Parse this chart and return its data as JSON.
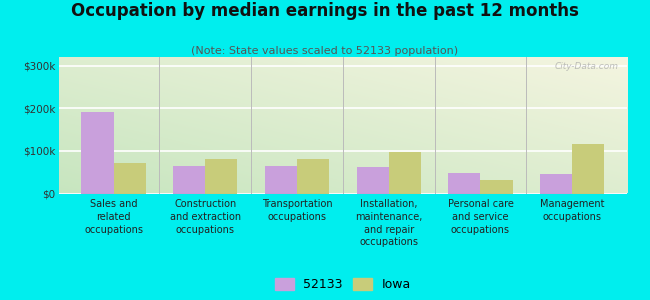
{
  "title": "Occupation by median earnings in the past 12 months",
  "subtitle": "(Note: State values scaled to 52133 population)",
  "categories": [
    "Sales and\nrelated\noccupations",
    "Construction\nand extraction\noccupations",
    "Transportation\noccupations",
    "Installation,\nmaintenance,\nand repair\noccupations",
    "Personal care\nand service\noccupations",
    "Management\noccupations"
  ],
  "values_52133": [
    190000,
    65000,
    65000,
    62000,
    48000,
    45000
  ],
  "values_iowa": [
    72000,
    82000,
    80000,
    98000,
    32000,
    115000
  ],
  "color_52133": "#c9a0dc",
  "color_iowa": "#c8cc7a",
  "ylim": [
    0,
    320000
  ],
  "yticks": [
    0,
    100000,
    200000,
    300000
  ],
  "ytick_labels": [
    "$0",
    "$100k",
    "$200k",
    "$300k"
  ],
  "outer_bg": "#00eeee",
  "watermark": "City-Data.com",
  "legend_labels": [
    "52133",
    "Iowa"
  ],
  "bar_width": 0.35,
  "title_fontsize": 12,
  "subtitle_fontsize": 8
}
